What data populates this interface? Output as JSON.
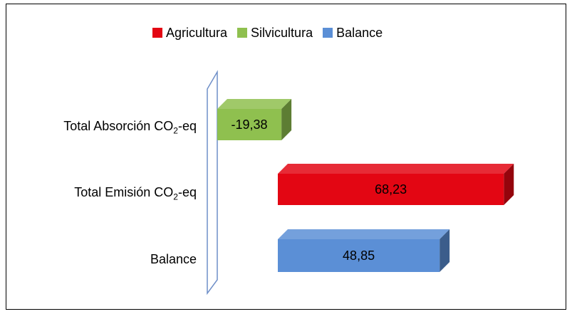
{
  "legend": [
    {
      "label": "Agricultura",
      "color": "#e30613"
    },
    {
      "label": "Silvicultura",
      "color": "#8fc04f"
    },
    {
      "label": "Balance",
      "color": "#5b8fd6"
    }
  ],
  "categories": {
    "absorcion": {
      "main": "Total Absorción  CO",
      "sub": "2",
      "tail": "-eq"
    },
    "emision": {
      "main": "Total Emisión  CO",
      "sub": "2",
      "tail": "-eq"
    },
    "balance": "Balance"
  },
  "chart_data": {
    "type": "bar",
    "orientation": "horizontal",
    "style": "3d",
    "categories": [
      "Total Absorción CO2-eq",
      "Total Emisión CO2-eq",
      "Balance"
    ],
    "series": [
      {
        "name": "Silvicultura",
        "values": [
          -19.38,
          null,
          null
        ],
        "color": "#8fc04f"
      },
      {
        "name": "Agricultura",
        "values": [
          null,
          68.23,
          null
        ],
        "color": "#e30613"
      },
      {
        "name": "Balance",
        "values": [
          null,
          null,
          48.85
        ],
        "color": "#5b8fd6"
      }
    ],
    "data_labels": [
      "-19,38",
      "68,23",
      "48,85"
    ],
    "legend_position": "top",
    "grid": false
  }
}
